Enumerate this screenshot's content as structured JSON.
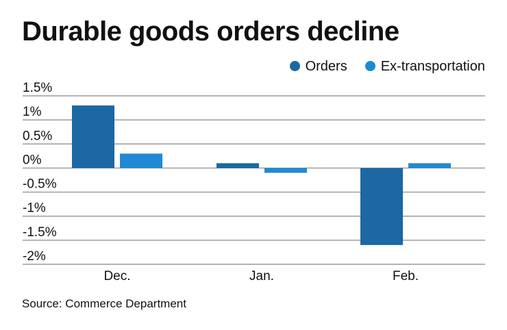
{
  "chart_data": {
    "type": "bar",
    "title": "Durable goods orders decline",
    "categories": [
      "Dec.",
      "Jan.",
      "Feb."
    ],
    "series": [
      {
        "name": "Orders",
        "values": [
          1.3,
          0.1,
          -1.6
        ],
        "color": "#1b68a3"
      },
      {
        "name": "Ex-transportation",
        "values": [
          0.3,
          -0.1,
          0.1
        ],
        "color": "#1f8ad4"
      }
    ],
    "yticks": [
      1.5,
      1,
      0.5,
      0,
      -0.5,
      -1,
      -1.5,
      -2
    ],
    "ytick_labels": [
      "1.5%",
      "1%",
      "0.5%",
      "0%",
      "-0.5%",
      "-1%",
      "-1.5%",
      "-2%"
    ],
    "ylim": [
      -2,
      1.5
    ],
    "grid": true,
    "legend": "top-right",
    "source": "Source: Commerce Department"
  }
}
